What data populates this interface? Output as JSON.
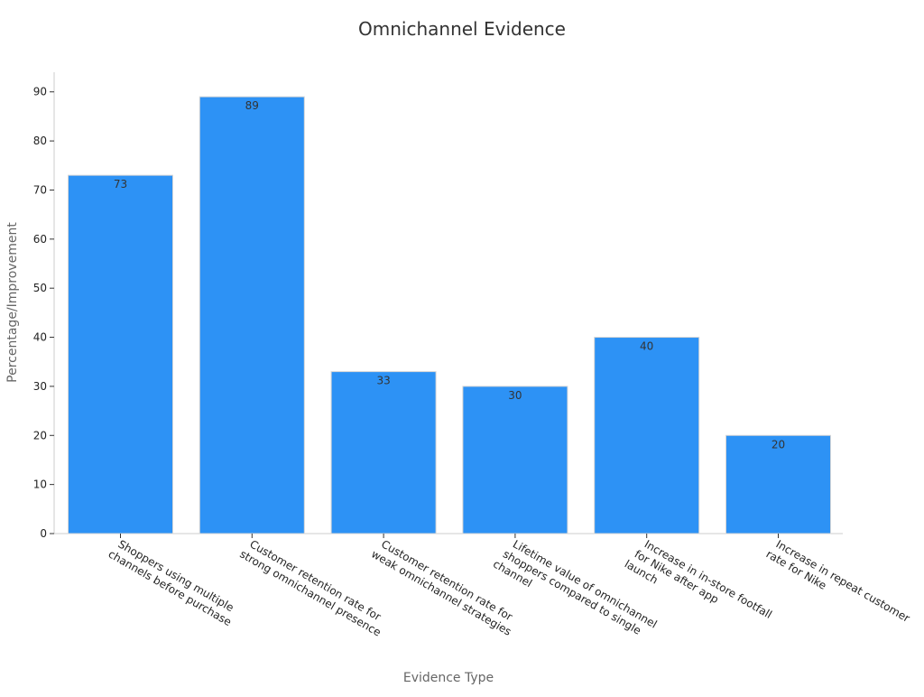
{
  "chart_data": {
    "type": "bar",
    "title": "Omnichannel Evidence",
    "xlabel": "Evidence Type",
    "ylabel": "Percentage/Improvement",
    "categories": [
      "Shoppers using multiple channels before purchase",
      "Customer retention rate for strong omnichannel presence",
      "Customer retention rate for weak omnichannel strategies",
      "Lifetime value of omnichannel shoppers compared to single channel",
      "Increase in in-store footfall for Nike after app launch",
      "Increase in repeat customer rate for Nike"
    ],
    "category_lines": [
      [
        "Shoppers using multiple",
        "channels before purchase"
      ],
      [
        "Customer retention rate for",
        "strong omnichannel presence"
      ],
      [
        "Customer retention rate for",
        "weak omnichannel strategies"
      ],
      [
        "Lifetime value of omnichannel",
        "shoppers compared to single",
        "channel"
      ],
      [
        "Increase in in-store footfall",
        "for Nike after app",
        "launch"
      ],
      [
        "Increase in repeat customer",
        "rate for Nike"
      ]
    ],
    "values": [
      73,
      89,
      33,
      30,
      40,
      20
    ],
    "ylim": [
      0,
      94
    ],
    "yticks": [
      0,
      10,
      20,
      30,
      40,
      50,
      60,
      70,
      80,
      90
    ],
    "grid": false,
    "legend": "none",
    "colors": {
      "bar": "#2d92f5",
      "bar_edge": "#d6d6d6",
      "axis": "#cccccc",
      "text": "#222222"
    }
  }
}
